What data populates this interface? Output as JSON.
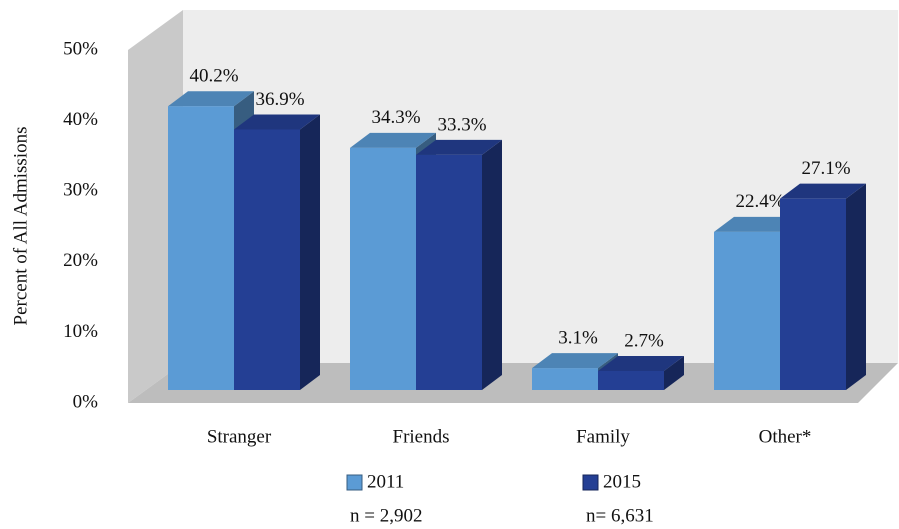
{
  "chart_data": {
    "type": "bar3d",
    "ylabel": "Percent of All Admissions",
    "categories": [
      "Stranger",
      "Friends",
      "Family",
      "Other*"
    ],
    "series": [
      {
        "name": "2011",
        "note": "n = 2,902",
        "color": "#5b9bd5",
        "values": [
          40.2,
          34.3,
          3.1,
          22.4
        ],
        "value_labels": [
          "40.2%",
          "34.3%",
          "3.1%",
          "22.4%"
        ]
      },
      {
        "name": "2015",
        "note": "n= 6,631",
        "color": "#243f94",
        "values": [
          36.9,
          33.3,
          2.7,
          27.1
        ],
        "value_labels": [
          "36.9%",
          "33.3%",
          "2.7%",
          "27.1%"
        ]
      }
    ],
    "ylim": [
      0,
      50
    ],
    "yticks": [
      {
        "value": 0,
        "label": "0%"
      },
      {
        "value": 10,
        "label": "10%"
      },
      {
        "value": 20,
        "label": "20%"
      },
      {
        "value": 30,
        "label": "30%"
      },
      {
        "value": 40,
        "label": "40%"
      },
      {
        "value": 50,
        "label": "50%"
      }
    ]
  }
}
